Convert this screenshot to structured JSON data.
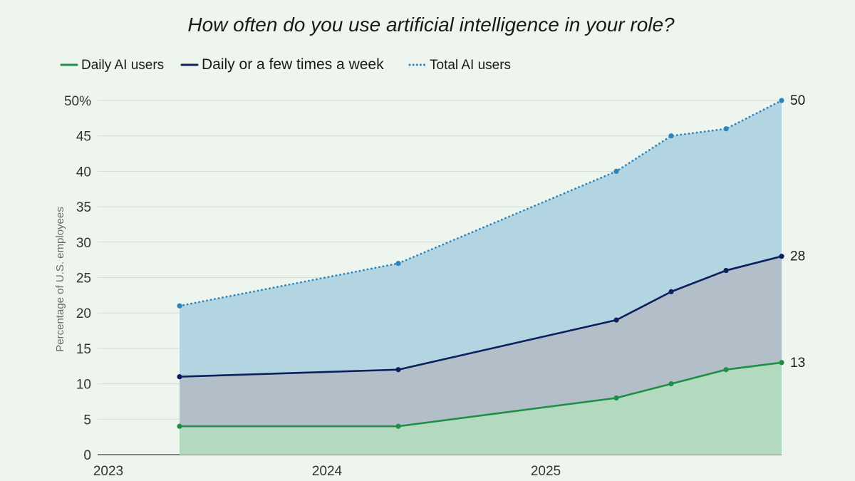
{
  "chart_data": {
    "type": "area",
    "title": "How often do you use artificial intelligence in your role?",
    "xlabel": "",
    "ylabel": "Percentage of U.S. employees",
    "xlim": [
      2023.0,
      2025.95
    ],
    "ylim": [
      0,
      50
    ],
    "x_ticks": [
      2023,
      2024,
      2025
    ],
    "x_tick_labels": [
      "2023",
      "2024",
      "2025"
    ],
    "y_ticks": [
      0,
      5,
      10,
      15,
      20,
      25,
      30,
      35,
      40,
      45,
      50
    ],
    "y_tick_labels": [
      "0",
      "5",
      "10",
      "15",
      "20",
      "25",
      "30",
      "35",
      "40",
      "45",
      "50%"
    ],
    "grid": true,
    "legend_position": "top-left",
    "x": [
      2023.375,
      2024.375,
      2025.375,
      2025.625,
      2025.875,
      2026.125
    ],
    "series": [
      {
        "name": "Total AI users",
        "line_style": "dotted",
        "line_color": "#2a85c0",
        "fill_color": "#b3d5e1",
        "x": [
          2023.375,
          2024.375,
          2025.375,
          2025.625,
          2025.875,
          2026.125
        ],
        "values": [
          21,
          27,
          40,
          45,
          46,
          50
        ],
        "end_label": "50"
      },
      {
        "name": "Daily or a few times a week",
        "line_style": "solid",
        "line_color": "#0e1f5e",
        "fill_color": "#b2bfc8",
        "x": [
          2023.375,
          2024.375,
          2025.375,
          2025.625,
          2025.875,
          2026.125
        ],
        "values": [
          11,
          12,
          19,
          23,
          26,
          28
        ],
        "end_label": "28"
      },
      {
        "name": "Daily AI users",
        "line_style": "solid",
        "line_color": "#1f8f48",
        "fill_color": "#b3d9bf",
        "x": [
          2023.375,
          2024.375,
          2025.375,
          2025.625,
          2025.875,
          2026.125
        ],
        "values": [
          4,
          4,
          8,
          10,
          12,
          13
        ],
        "end_label": "13"
      }
    ]
  }
}
